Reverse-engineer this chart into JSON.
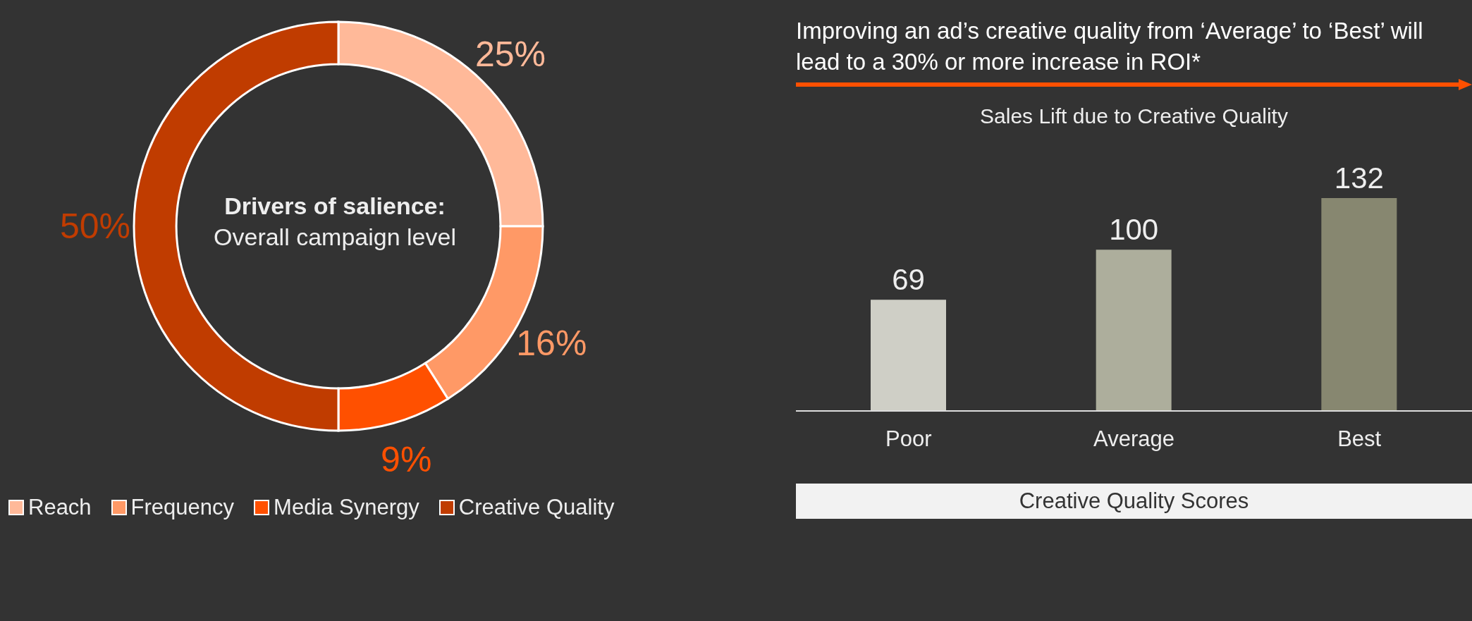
{
  "chart_data": [
    {
      "type": "donut",
      "title": "Drivers of salience:",
      "subtitle": "Overall campaign level",
      "categories": [
        "Reach",
        "Frequency",
        "Media Synergy",
        "Creative Quality"
      ],
      "values": [
        25,
        16,
        9,
        50
      ],
      "colors": [
        "#ffb999",
        "#ff9966",
        "#ff5000",
        "#c03c00"
      ],
      "value_labels": [
        "25%",
        "16%",
        "9%",
        "50%"
      ],
      "legend": "bottom"
    },
    {
      "type": "bar",
      "title": "Sales Lift due to Creative Quality",
      "xlabel": "Creative Quality Scores",
      "annotations": [
        "Improving an ad’s creative quality from ‘Average’ to ‘Best’ will lead to a 30% or more increase in ROI*"
      ],
      "categories": [
        "Poor",
        "Average",
        "Best"
      ],
      "values": [
        69,
        100,
        132
      ],
      "colors": [
        "#cfcfc6",
        "#adae9c",
        "#878770"
      ],
      "data_labels": true
    }
  ]
}
